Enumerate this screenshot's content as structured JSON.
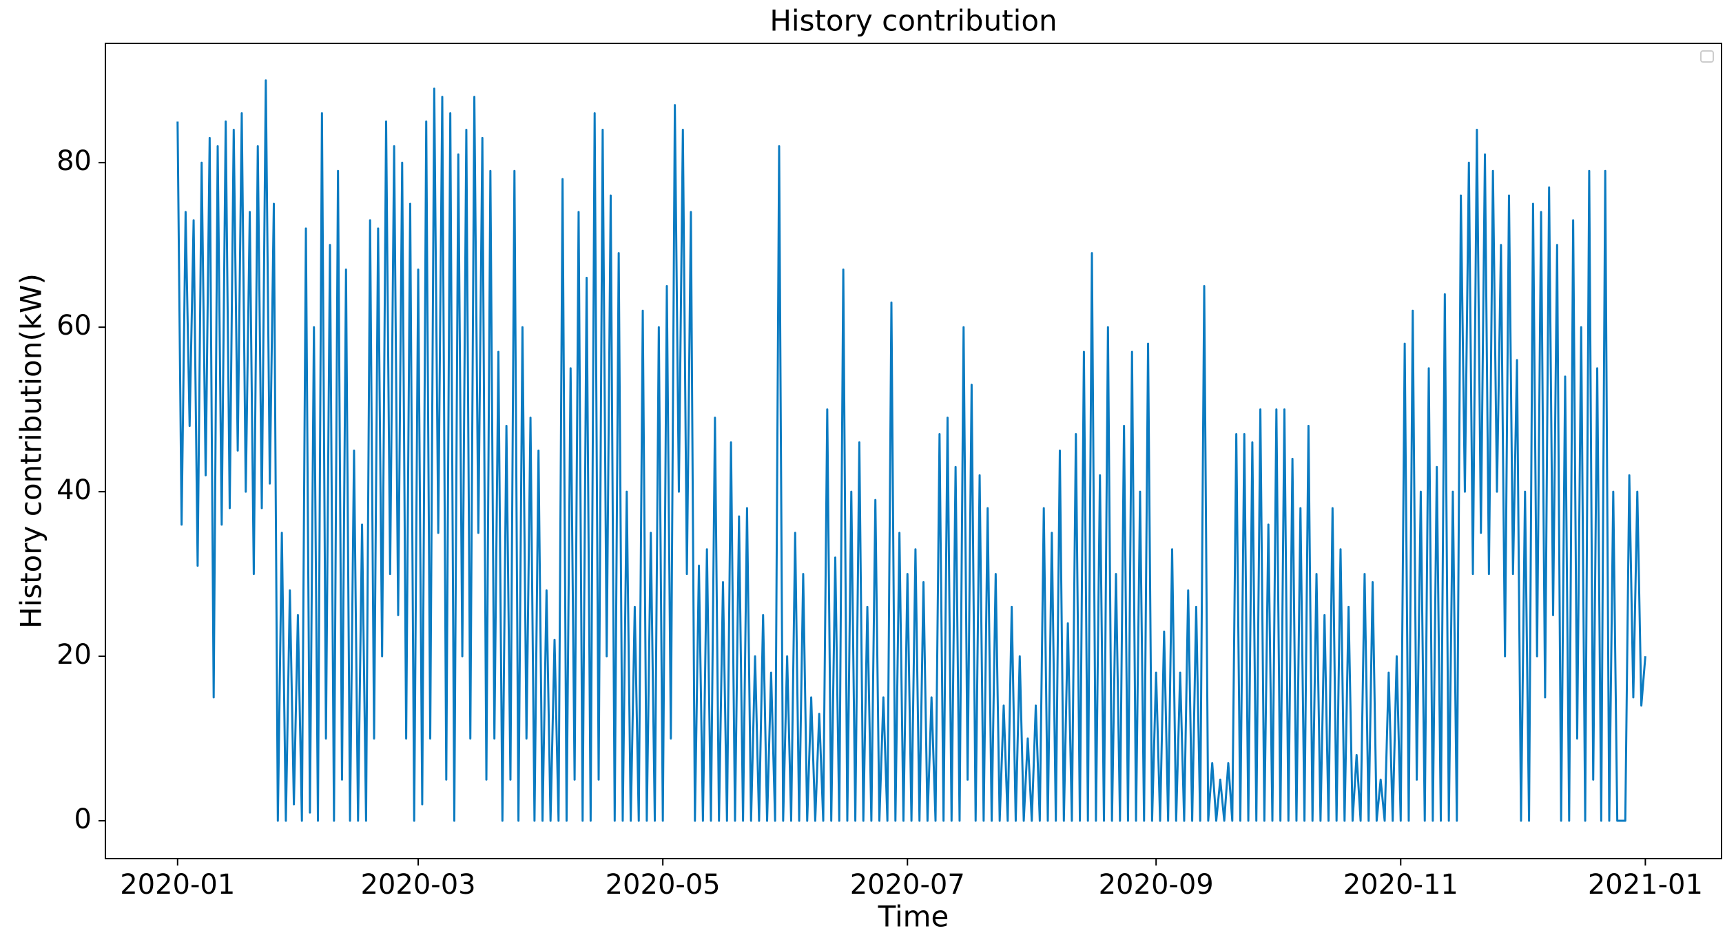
{
  "chart_data": {
    "type": "line",
    "title": "History contribution",
    "xlabel": "Time",
    "ylabel": "History contribution(kW)",
    "color": "#0b7bc1",
    "xlim": [
      -18,
      385
    ],
    "ylim": [
      -4.6,
      94.5
    ],
    "xticks": [
      {
        "value": 0,
        "label": "2020-01"
      },
      {
        "value": 60,
        "label": "2020-03"
      },
      {
        "value": 121,
        "label": "2020-05"
      },
      {
        "value": 182,
        "label": "2020-07"
      },
      {
        "value": 244,
        "label": "2020-09"
      },
      {
        "value": 305,
        "label": "2020-11"
      },
      {
        "value": 366,
        "label": "2021-01"
      }
    ],
    "yticks": [
      0,
      20,
      40,
      60,
      80
    ],
    "grid": false,
    "x": [
      0,
      1,
      2,
      3,
      4,
      5,
      6,
      7,
      8,
      9,
      10,
      11,
      12,
      13,
      14,
      15,
      16,
      17,
      18,
      19,
      20,
      21,
      22,
      23,
      24,
      25,
      26,
      27,
      28,
      29,
      30,
      31,
      32,
      33,
      34,
      35,
      36,
      37,
      38,
      39,
      40,
      41,
      42,
      43,
      44,
      45,
      46,
      47,
      48,
      49,
      50,
      51,
      52,
      53,
      54,
      55,
      56,
      57,
      58,
      59,
      60,
      61,
      62,
      63,
      64,
      65,
      66,
      67,
      68,
      69,
      70,
      71,
      72,
      73,
      74,
      75,
      76,
      77,
      78,
      79,
      80,
      81,
      82,
      83,
      84,
      85,
      86,
      87,
      88,
      89,
      90,
      91,
      92,
      93,
      94,
      95,
      96,
      97,
      98,
      99,
      100,
      101,
      102,
      103,
      104,
      105,
      106,
      107,
      108,
      109,
      110,
      111,
      112,
      113,
      114,
      115,
      116,
      117,
      118,
      119,
      120,
      121,
      122,
      123,
      124,
      125,
      126,
      127,
      128,
      129,
      130,
      131,
      132,
      133,
      134,
      135,
      136,
      137,
      138,
      139,
      140,
      141,
      142,
      143,
      144,
      145,
      146,
      147,
      148,
      149,
      150,
      151,
      152,
      153,
      154,
      155,
      156,
      157,
      158,
      159,
      160,
      161,
      162,
      163,
      164,
      165,
      166,
      167,
      168,
      169,
      170,
      171,
      172,
      173,
      174,
      175,
      176,
      177,
      178,
      179,
      180,
      181,
      182,
      183,
      184,
      185,
      186,
      187,
      188,
      189,
      190,
      191,
      192,
      193,
      194,
      195,
      196,
      197,
      198,
      199,
      200,
      201,
      202,
      203,
      204,
      205,
      206,
      207,
      208,
      209,
      210,
      211,
      212,
      213,
      214,
      215,
      216,
      217,
      218,
      219,
      220,
      221,
      222,
      223,
      224,
      225,
      226,
      227,
      228,
      229,
      230,
      231,
      232,
      233,
      234,
      235,
      236,
      237,
      238,
      239,
      240,
      241,
      242,
      243,
      244,
      245,
      246,
      247,
      248,
      249,
      250,
      251,
      252,
      253,
      254,
      255,
      256,
      257,
      258,
      259,
      260,
      261,
      262,
      263,
      264,
      265,
      266,
      267,
      268,
      269,
      270,
      271,
      272,
      273,
      274,
      275,
      276,
      277,
      278,
      279,
      280,
      281,
      282,
      283,
      284,
      285,
      286,
      287,
      288,
      289,
      290,
      291,
      292,
      293,
      294,
      295,
      296,
      297,
      298,
      299,
      300,
      301,
      302,
      303,
      304,
      305,
      306,
      307,
      308,
      309,
      310,
      311,
      312,
      313,
      314,
      315,
      316,
      317,
      318,
      319,
      320,
      321,
      322,
      323,
      324,
      325,
      326,
      327,
      328,
      329,
      330,
      331,
      332,
      333,
      334,
      335,
      336,
      337,
      338,
      339,
      340,
      341,
      342,
      343,
      344,
      345,
      346,
      347,
      348,
      349,
      350,
      351,
      352,
      353,
      354,
      355,
      356,
      357,
      358,
      359,
      360,
      361,
      362,
      363,
      364,
      365,
      366
    ],
    "values": [
      85,
      36,
      74,
      48,
      73,
      31,
      80,
      42,
      83,
      15,
      82,
      36,
      85,
      38,
      84,
      45,
      86,
      40,
      74,
      30,
      82,
      38,
      90,
      41,
      75,
      0,
      35,
      0,
      28,
      2,
      25,
      0,
      72,
      1,
      60,
      0,
      86,
      10,
      70,
      0,
      79,
      5,
      67,
      0,
      45,
      0,
      36,
      0,
      73,
      10,
      72,
      20,
      85,
      30,
      82,
      25,
      80,
      10,
      75,
      0,
      67,
      2,
      85,
      10,
      89,
      35,
      88,
      5,
      86,
      0,
      81,
      20,
      84,
      10,
      88,
      35,
      83,
      5,
      79,
      10,
      57,
      0,
      48,
      5,
      79,
      0,
      60,
      10,
      49,
      0,
      45,
      0,
      28,
      0,
      22,
      0,
      78,
      0,
      55,
      5,
      74,
      0,
      66,
      0,
      86,
      5,
      84,
      20,
      76,
      0,
      69,
      0,
      40,
      0,
      26,
      0,
      62,
      0,
      35,
      0,
      60,
      0,
      65,
      10,
      87,
      40,
      84,
      30,
      74,
      0,
      31,
      0,
      33,
      0,
      49,
      0,
      29,
      0,
      46,
      0,
      37,
      0,
      38,
      0,
      20,
      0,
      25,
      0,
      18,
      0,
      82,
      0,
      20,
      0,
      35,
      0,
      30,
      0,
      15,
      0,
      13,
      0,
      50,
      0,
      32,
      0,
      67,
      0,
      40,
      0,
      46,
      0,
      26,
      0,
      39,
      0,
      15,
      0,
      63,
      0,
      35,
      0,
      30,
      0,
      33,
      0,
      29,
      0,
      15,
      0,
      47,
      0,
      49,
      0,
      43,
      0,
      60,
      5,
      53,
      0,
      42,
      0,
      38,
      0,
      30,
      0,
      14,
      0,
      26,
      0,
      20,
      0,
      10,
      0,
      14,
      0,
      38,
      0,
      35,
      0,
      45,
      0,
      24,
      0,
      47,
      0,
      57,
      0,
      69,
      0,
      42,
      0,
      60,
      0,
      30,
      0,
      48,
      0,
      57,
      0,
      40,
      0,
      58,
      0,
      18,
      0,
      23,
      0,
      33,
      0,
      18,
      0,
      28,
      0,
      26,
      0,
      65,
      0,
      7,
      0,
      5,
      0,
      7,
      0,
      47,
      0,
      47,
      0,
      46,
      0,
      50,
      0,
      36,
      0,
      50,
      0,
      50,
      0,
      44,
      0,
      38,
      0,
      48,
      0,
      30,
      0,
      25,
      0,
      38,
      0,
      33,
      0,
      26,
      0,
      8,
      0,
      30,
      0,
      29,
      0,
      5,
      0,
      18,
      0,
      20,
      0,
      58,
      0,
      62,
      5,
      40,
      0,
      55,
      0,
      43,
      0,
      64,
      0,
      40,
      0,
      76,
      40,
      80,
      30,
      84,
      35,
      81,
      30,
      79,
      40,
      70,
      20,
      76,
      30,
      56,
      0,
      40,
      0,
      75,
      20,
      74,
      15,
      77,
      25,
      70,
      0,
      54,
      0,
      73,
      10,
      60,
      0,
      79,
      5,
      55,
      0,
      79,
      0,
      40,
      0,
      0,
      0,
      42,
      15,
      40,
      14,
      20
    ]
  }
}
